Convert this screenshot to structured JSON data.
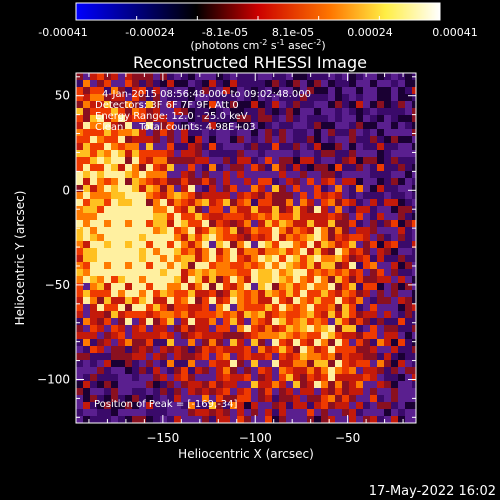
{
  "colorbar": {
    "ticks": [
      "-0.00041",
      "-0.00024",
      "-8.1e-05",
      "8.1e-05",
      "0.00024",
      "0.00041"
    ],
    "units_prefix": "(photons cm",
    "units_exp1": "-2",
    "units_mid": " s",
    "units_exp2": "-1",
    "units_tail": " asec",
    "units_exp3": "-2",
    "units_close": ")"
  },
  "chart_data": {
    "type": "heatmap",
    "title": "Reconstructed RHESSI Image",
    "xlabel": "Heliocentric X (arcsec)",
    "ylabel": "Heliocentric Y (arcsec)",
    "xlim": [
      -197,
      -13
    ],
    "ylim": [
      -123,
      62
    ],
    "xticks": [
      -150,
      -100,
      -50
    ],
    "yticks": [
      50,
      0,
      -50,
      -100
    ],
    "xtick_labels": [
      "−150",
      "−100",
      "−50"
    ],
    "ytick_labels": [
      "50",
      "0",
      "−50",
      "−100"
    ],
    "colormap": "red-temperature",
    "color_range": [
      -0.00041,
      0.00041
    ],
    "peak": [
      -169,
      -34
    ],
    "annotations": [
      "4-Jan-2015 08:56:48.000 to 09:02:48.000",
      "Detectors: 3F 6F 7F 9F, Att 0",
      "Energy Range: 12.0 - 25.0 keV",
      "Clean     Total counts: 4.98E+03"
    ],
    "peak_label": "Position of Peak = [-169,-34]"
  },
  "footer": {
    "timestamp": "17-May-2022 16:02"
  }
}
